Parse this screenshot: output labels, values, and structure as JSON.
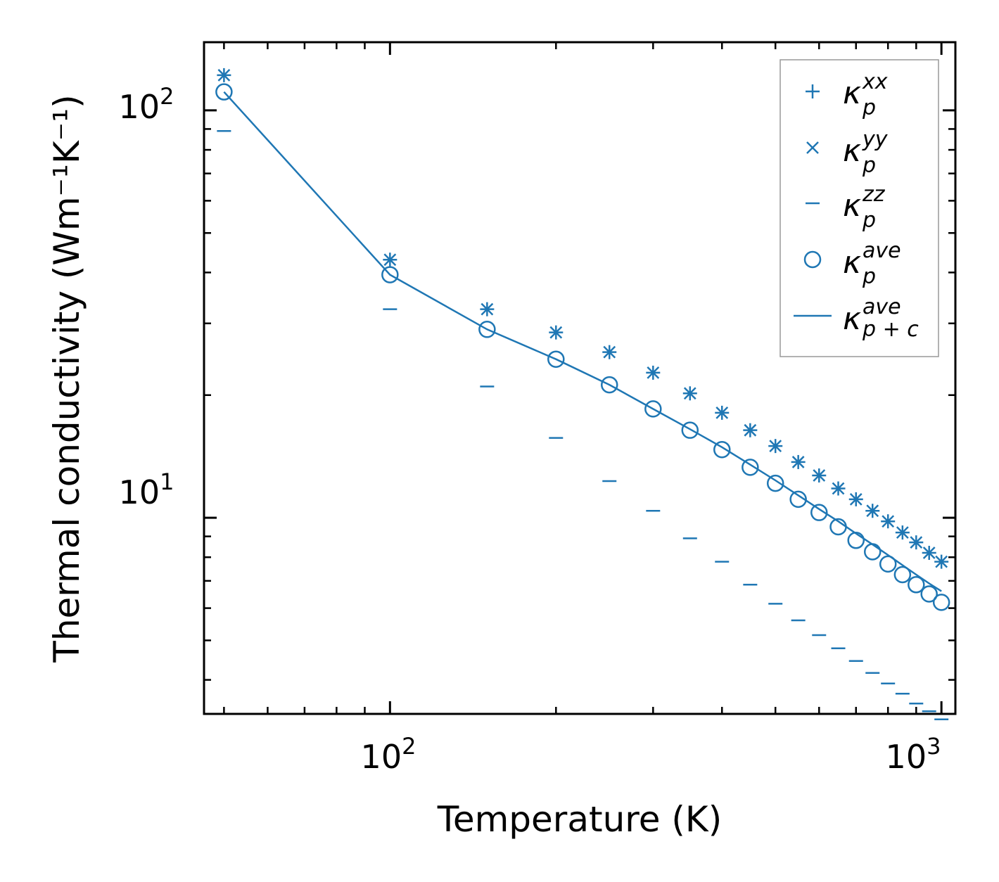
{
  "chart_data": {
    "type": "scatter",
    "title": "",
    "xlabel": "Temperature (K)",
    "ylabel": "Thermal conductivity (Wm⁻¹K⁻¹)",
    "xscale": "log",
    "yscale": "log",
    "xlim": [
      46,
      1060
    ],
    "ylim": [
      3.3,
      147
    ],
    "xtick_labels": [
      {
        "base": "10",
        "exp": "2",
        "value": 100
      },
      {
        "base": "10",
        "exp": "3",
        "value": 1000
      }
    ],
    "ytick_labels": [
      {
        "base": "10",
        "exp": "1",
        "value": 10
      },
      {
        "base": "10",
        "exp": "2",
        "value": 100
      }
    ],
    "color": "#1f77b4",
    "x": [
      50,
      100,
      150,
      200,
      250,
      300,
      350,
      400,
      450,
      500,
      550,
      600,
      650,
      700,
      750,
      800,
      850,
      900,
      950,
      1000
    ],
    "series": [
      {
        "name": "kappa_p^xx",
        "marker": "plus",
        "values": [
          122,
          43,
          32.5,
          28.5,
          25.5,
          22.7,
          20.2,
          18.1,
          16.4,
          15.0,
          13.7,
          12.7,
          11.8,
          11.1,
          10.4,
          9.8,
          9.2,
          8.7,
          8.2,
          7.8
        ]
      },
      {
        "name": "kappa_p^yy",
        "marker": "x",
        "values": [
          122,
          43,
          32.5,
          28.5,
          25.5,
          22.7,
          20.2,
          18.1,
          16.4,
          15.0,
          13.7,
          12.7,
          11.8,
          11.1,
          10.4,
          9.8,
          9.2,
          8.7,
          8.2,
          7.8
        ]
      },
      {
        "name": "kappa_p^zz",
        "marker": "hline",
        "values": [
          89,
          32.5,
          21.0,
          15.7,
          12.3,
          10.4,
          8.9,
          7.8,
          6.85,
          6.15,
          5.6,
          5.15,
          4.78,
          4.45,
          4.16,
          3.92,
          3.7,
          3.5,
          3.35,
          3.2
        ]
      },
      {
        "name": "kappa_p^ave",
        "marker": "circle",
        "values": [
          111,
          39.5,
          29,
          24.5,
          21.2,
          18.5,
          16.4,
          14.7,
          13.3,
          12.15,
          11.1,
          10.3,
          9.5,
          8.8,
          8.25,
          7.7,
          7.25,
          6.85,
          6.5,
          6.2
        ]
      },
      {
        "name": "kappa_{p+c}^ave",
        "marker": "line",
        "values": [
          111,
          39.5,
          29,
          24.5,
          21.2,
          18.5,
          16.5,
          14.9,
          13.5,
          12.35,
          11.35,
          10.5,
          9.8,
          9.15,
          8.6,
          8.1,
          7.65,
          7.25,
          6.9,
          6.6
        ]
      }
    ],
    "legend": {
      "position": "top-right",
      "entries": [
        {
          "kappa": "κ",
          "sub": "p",
          "sup": "xx"
        },
        {
          "kappa": "κ",
          "sub": "p",
          "sup": "yy"
        },
        {
          "kappa": "κ",
          "sub": "p",
          "sup": "zz"
        },
        {
          "kappa": "κ",
          "sub": "p",
          "sup": "ave"
        },
        {
          "kappa": "κ",
          "sub": "p + c",
          "sup": "ave"
        }
      ]
    }
  }
}
